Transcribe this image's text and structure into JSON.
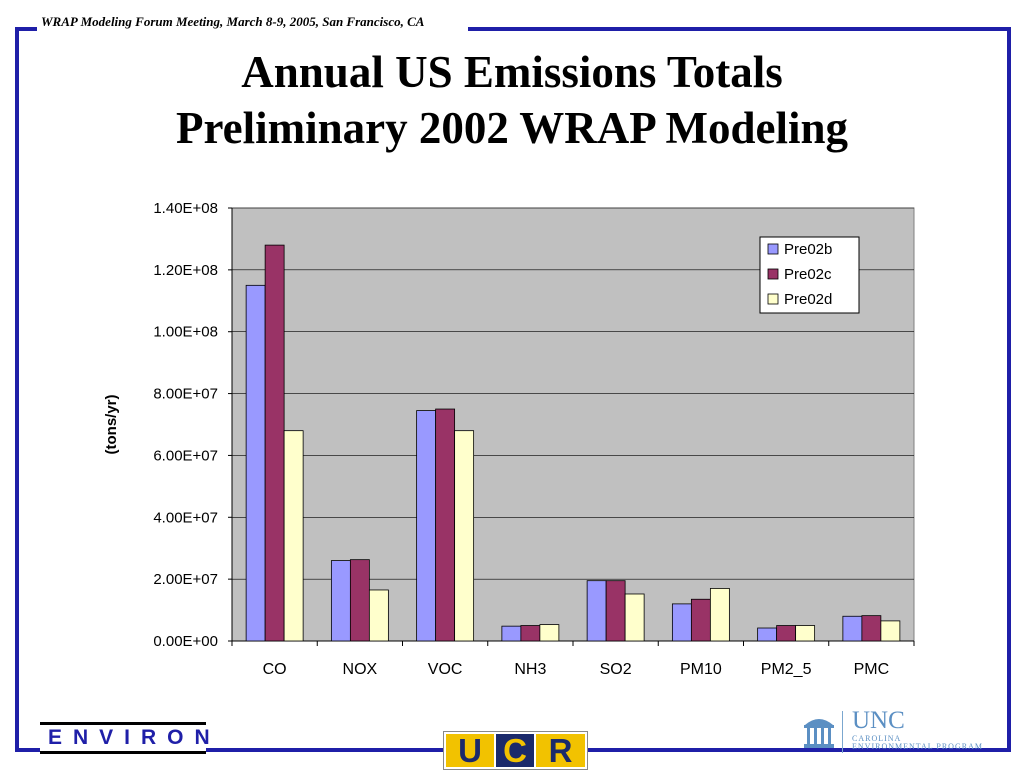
{
  "header": {
    "meeting_text": "WRAP Modeling Forum Meeting, March 8-9, 2005, San Francisco, CA"
  },
  "title": {
    "line1": "Annual US Emissions Totals",
    "line2": "Preliminary 2002 WRAP Modeling"
  },
  "chart_data": {
    "type": "bar",
    "title": "",
    "xlabel": "",
    "ylabel": "(tons/yr)",
    "ylim": [
      0,
      140000000
    ],
    "yticks": [
      0,
      20000000,
      40000000,
      60000000,
      80000000,
      100000000,
      120000000,
      140000000
    ],
    "ytick_labels": [
      "0.00E+00",
      "2.00E+07",
      "4.00E+07",
      "6.00E+07",
      "8.00E+07",
      "1.00E+08",
      "1.20E+08",
      "1.40E+08"
    ],
    "categories": [
      "CO",
      "NOX",
      "VOC",
      "NH3",
      "SO2",
      "PM10",
      "PM2_5",
      "PMC"
    ],
    "series": [
      {
        "name": "Pre02b",
        "color": "#9999ff",
        "values": [
          115000000,
          26000000,
          74500000,
          4800000,
          19500000,
          12000000,
          4200000,
          8000000
        ]
      },
      {
        "name": "Pre02c",
        "color": "#993366",
        "values": [
          128000000,
          26300000,
          75000000,
          5000000,
          19500000,
          13500000,
          5000000,
          8200000
        ]
      },
      {
        "name": "Pre02d",
        "color": "#ffffcc",
        "values": [
          68000000,
          16500000,
          68000000,
          5300000,
          15200000,
          17000000,
          5000000,
          6500000
        ]
      }
    ],
    "grid": true,
    "plot_background": "#c0c0c0",
    "legend_position": "top-right"
  },
  "logos": {
    "environ_text": "ENVIRON",
    "ucr_letters": [
      "U",
      "C",
      "R"
    ],
    "unc_name": "UNC",
    "unc_sub_line1": "CAROLINA",
    "unc_sub_line2": "ENVIRONMENTAL PROGRAM"
  },
  "colors": {
    "frame": "#1f1fa8",
    "plot_background": "#c0c0c0"
  }
}
